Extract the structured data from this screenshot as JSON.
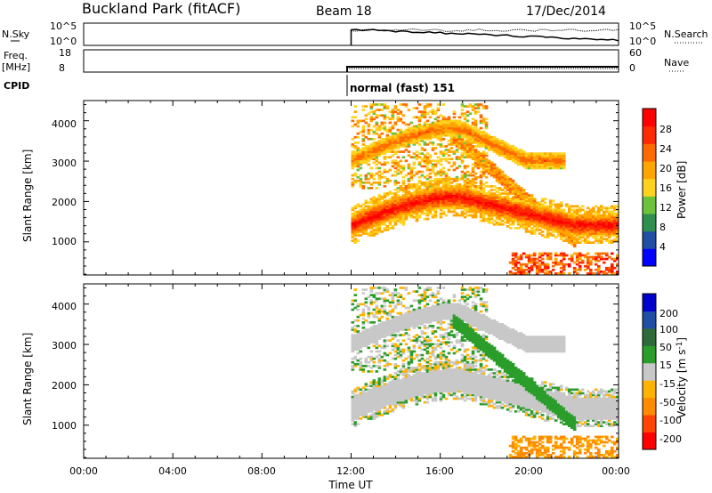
{
  "header": {
    "station": "Buckland Park (fitACF)",
    "beam": "Beam 18",
    "date": "17/Dec/2014"
  },
  "nsky_panel": {
    "left_label": "N.Sky",
    "left_ticks": [
      "10^5",
      "10^0"
    ],
    "right_label": "N.Search",
    "right_ticks": [
      "10^5",
      "10^0"
    ]
  },
  "freq_panel": {
    "left_label_line1": "Freq.",
    "left_label_line2": "[MHz]",
    "left_ticks": [
      "18",
      "8"
    ],
    "right_label": "Nave",
    "right_ticks": [
      "60",
      "0"
    ]
  },
  "cpid": {
    "label": "CPID",
    "mode_text": "normal (fast) 151"
  },
  "x_axis": {
    "title": "Time UT",
    "ticks": [
      "00:00",
      "04:00",
      "08:00",
      "12:00",
      "16:00",
      "20:00",
      "00:00"
    ]
  },
  "colors": {
    "power_scale": [
      "#0000ff",
      "#1e4fa5",
      "#2f8f4f",
      "#6cc23a",
      "#ffd21f",
      "#ffa500",
      "#ff6a00",
      "#ff2a00",
      "#ff0000"
    ],
    "velocity_scale": [
      "#ff0000",
      "#ff4500",
      "#ff8c00",
      "#ffb300",
      "#c8c8c8",
      "#2a9d2a",
      "#2e6b3a",
      "#1e4fa5",
      "#0000cd"
    ]
  },
  "chart_data": [
    {
      "type": "heatmap",
      "title": "",
      "xlabel": "Time UT",
      "ylabel": "Slant Range [km]",
      "yticks": [
        1000,
        2000,
        3000,
        4000
      ],
      "ylim": [
        180,
        4500
      ],
      "xlim_hours": [
        0,
        24
      ],
      "data_start_hours": 12,
      "colorbar": {
        "label": "Power [dB]",
        "ticks": [
          4,
          8,
          12,
          16,
          20,
          24,
          28
        ],
        "range": [
          0,
          30
        ]
      },
      "features": [
        {
          "name": "ground scatter band",
          "range_km_start": 1400,
          "range_km_peak": 2100,
          "t_start": 12,
          "t_peak": 16.8,
          "t_end": 24,
          "power_db": 28
        },
        {
          "name": "upper arc",
          "range_km_start": 3000,
          "range_km_peak": 3800,
          "t_start": 12,
          "t_peak": 16.8,
          "t_end": 21,
          "power_db": 22
        }
      ]
    },
    {
      "type": "heatmap",
      "title": "",
      "xlabel": "Time UT",
      "ylabel": "Slant Range [km]",
      "yticks": [
        1000,
        2000,
        3000,
        4000
      ],
      "ylim": [
        180,
        4500
      ],
      "xlim_hours": [
        0,
        24
      ],
      "data_start_hours": 12,
      "colorbar": {
        "label": "Velocity [m s^-1]",
        "ticks": [
          200,
          100,
          50,
          15,
          -15,
          -50,
          -100,
          -200
        ],
        "range": [
          -250,
          250
        ]
      },
      "features": [
        {
          "name": "ground scatter (grey)",
          "range_km_start": 1400,
          "range_km_peak": 2100,
          "t_start": 12,
          "t_peak": 16.8,
          "t_end": 24,
          "velocity": 0
        },
        {
          "name": "descending green arc",
          "range_km_start": 3600,
          "range_km_end": 1000,
          "t_start": 16.5,
          "t_end": 22,
          "velocity": 40
        }
      ]
    }
  ]
}
